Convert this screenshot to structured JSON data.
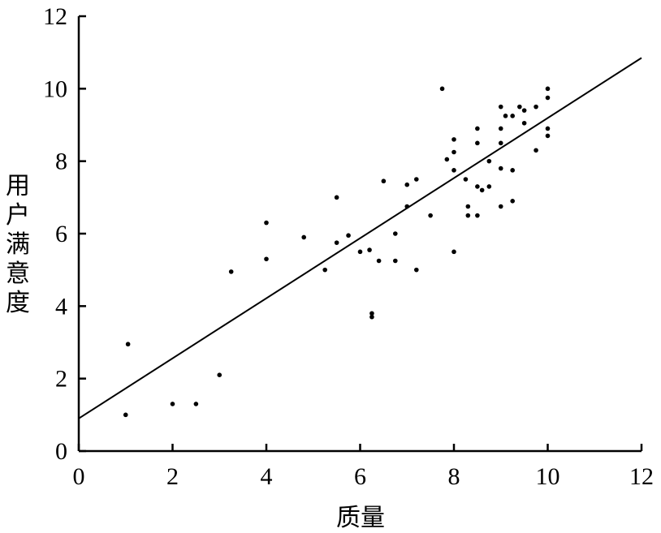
{
  "chart_data": {
    "type": "scatter",
    "title": "",
    "xlabel": "质量",
    "ylabel": "用户满意度",
    "xlim": [
      0,
      12
    ],
    "ylim": [
      0,
      12
    ],
    "xticks": [
      "0",
      "2",
      "4",
      "6",
      "8",
      "10",
      "12"
    ],
    "yticks": [
      "0",
      "2",
      "4",
      "6",
      "8",
      "10",
      "12"
    ],
    "grid": false,
    "series": [
      {
        "points": [
          [
            1.0,
            1.0
          ],
          [
            1.05,
            2.95
          ],
          [
            2.0,
            1.3
          ],
          [
            2.5,
            1.3
          ],
          [
            3.0,
            2.1
          ],
          [
            3.25,
            4.95
          ],
          [
            4.0,
            6.3
          ],
          [
            4.0,
            5.3
          ],
          [
            4.8,
            5.9
          ],
          [
            5.25,
            5.0
          ],
          [
            5.5,
            7.0
          ],
          [
            5.5,
            5.75
          ],
          [
            5.75,
            5.95
          ],
          [
            6.0,
            5.5
          ],
          [
            6.2,
            5.55
          ],
          [
            6.25,
            3.8
          ],
          [
            6.25,
            3.7
          ],
          [
            6.4,
            5.25
          ],
          [
            6.5,
            7.45
          ],
          [
            6.75,
            5.25
          ],
          [
            6.75,
            6.0
          ],
          [
            7.0,
            6.75
          ],
          [
            7.0,
            7.35
          ],
          [
            7.2,
            7.5
          ],
          [
            7.2,
            5.0
          ],
          [
            7.5,
            6.5
          ],
          [
            7.75,
            10.0
          ],
          [
            7.85,
            8.05
          ],
          [
            8.0,
            8.25
          ],
          [
            8.0,
            7.75
          ],
          [
            8.0,
            5.5
          ],
          [
            8.25,
            7.5
          ],
          [
            8.3,
            6.5
          ],
          [
            8.5,
            6.5
          ],
          [
            8.3,
            6.75
          ],
          [
            8.5,
            7.3
          ],
          [
            8.5,
            8.9
          ],
          [
            8.5,
            8.5
          ],
          [
            8.75,
            8.0
          ],
          [
            8.75,
            7.3
          ],
          [
            9.0,
            8.9
          ],
          [
            9.0,
            8.5
          ],
          [
            9.0,
            9.5
          ],
          [
            9.0,
            7.8
          ],
          [
            9.0,
            6.75
          ],
          [
            9.25,
            6.9
          ],
          [
            9.25,
            7.75
          ],
          [
            9.25,
            9.25
          ],
          [
            9.5,
            9.4
          ],
          [
            9.5,
            9.05
          ],
          [
            9.75,
            9.5
          ],
          [
            9.75,
            8.3
          ],
          [
            10.0,
            10.0
          ],
          [
            10.0,
            9.75
          ],
          [
            10.0,
            8.9
          ],
          [
            10.0,
            8.7
          ],
          [
            8.0,
            8.6
          ],
          [
            9.1,
            9.25
          ],
          [
            8.6,
            7.2
          ],
          [
            9.4,
            9.5
          ]
        ]
      }
    ],
    "trendline": {
      "x": [
        0,
        12
      ],
      "y": [
        0.9,
        10.85
      ]
    }
  }
}
